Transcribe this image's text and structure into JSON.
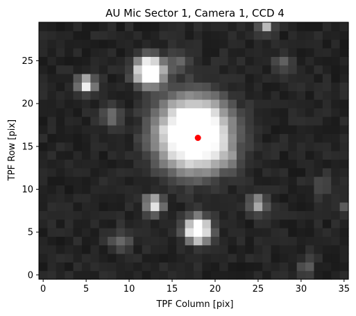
{
  "chart_data": {
    "type": "heatmap",
    "title": "AU Mic Sector 1, Camera 1, CCD 4",
    "xlabel": "TPF Column [pix]",
    "ylabel": "TPF Row [pix]",
    "xlim": [
      -0.5,
      35.5
    ],
    "ylim": [
      -0.5,
      29.5
    ],
    "xticks": [
      0,
      5,
      10,
      15,
      20,
      25,
      30,
      35
    ],
    "yticks": [
      0,
      5,
      10,
      15,
      20,
      25
    ],
    "colormap": "gray",
    "grid": false,
    "background_level": 0.14,
    "sources": [
      {
        "x": 17.5,
        "y": 16.5,
        "peak": 1.0,
        "sigma": 2.2,
        "flat_radius": 1.6
      },
      {
        "x": 12.4,
        "y": 23.8,
        "peak": 1.0,
        "sigma": 0.9,
        "flat_radius": 0.6
      },
      {
        "x": 5.0,
        "y": 22.3,
        "peak": 0.85,
        "sigma": 0.7,
        "flat_radius": 0.0
      },
      {
        "x": 18.0,
        "y": 5.3,
        "peak": 1.0,
        "sigma": 0.85,
        "flat_radius": 0.4
      },
      {
        "x": 12.9,
        "y": 8.3,
        "peak": 0.8,
        "sigma": 0.75,
        "flat_radius": 0.0
      },
      {
        "x": 25.0,
        "y": 8.3,
        "peak": 0.6,
        "sigma": 0.7,
        "flat_radius": 0.0
      },
      {
        "x": 26.0,
        "y": 29.0,
        "peak": 0.55,
        "sigma": 0.6,
        "flat_radius": 0.0
      },
      {
        "x": 7.8,
        "y": 18.6,
        "peak": 0.35,
        "sigma": 0.8,
        "flat_radius": 0.0
      },
      {
        "x": 15.8,
        "y": 25.0,
        "peak": 0.3,
        "sigma": 0.8,
        "flat_radius": 0.0
      },
      {
        "x": 28.0,
        "y": 24.8,
        "peak": 0.28,
        "sigma": 0.7,
        "flat_radius": 0.0
      },
      {
        "x": 9.0,
        "y": 4.0,
        "peak": 0.25,
        "sigma": 0.9,
        "flat_radius": 0.0
      },
      {
        "x": 30.5,
        "y": 1.0,
        "peak": 0.25,
        "sigma": 0.7,
        "flat_radius": 0.0
      },
      {
        "x": 32.5,
        "y": 10.5,
        "peak": 0.22,
        "sigma": 0.8,
        "flat_radius": 0.0
      },
      {
        "x": 21.5,
        "y": 13.5,
        "peak": 0.2,
        "sigma": 1.0,
        "flat_radius": 0.0
      },
      {
        "x": 35.0,
        "y": 8.0,
        "peak": 0.25,
        "sigma": 0.6,
        "flat_radius": 0.0
      }
    ],
    "target_marker": {
      "x": 18.0,
      "y": 16.0,
      "color": "#ff0000"
    }
  }
}
